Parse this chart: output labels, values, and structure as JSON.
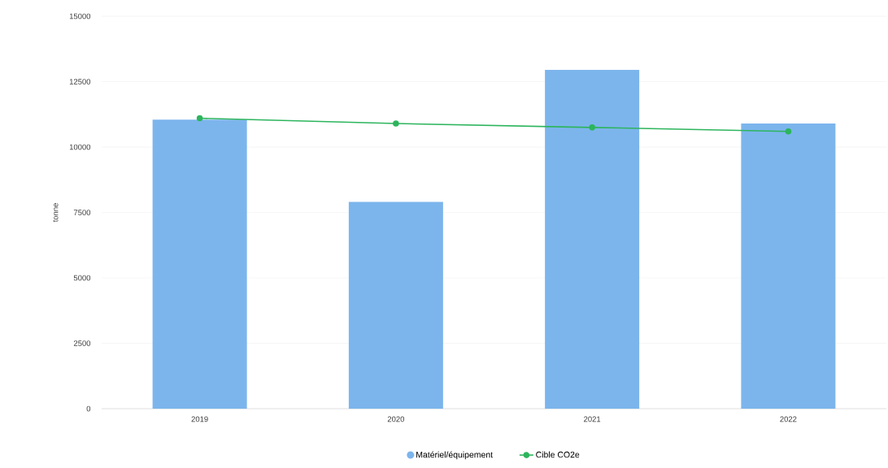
{
  "chart_data": {
    "type": "bar",
    "categories": [
      "2019",
      "2020",
      "2021",
      "2022"
    ],
    "ylabel": "tonne",
    "ylim": [
      0,
      15000
    ],
    "yticks": [
      0,
      2500,
      5000,
      7500,
      10000,
      12500,
      15000
    ],
    "grid": "y",
    "legend": "bottom",
    "series": [
      {
        "name": "Matériel/équipement",
        "color": "#7cb5ec",
        "values": [
          11050,
          7900,
          12950,
          10900
        ]
      },
      {
        "name": "Cible CO2e",
        "type": "line",
        "color": "#2db55d",
        "marker": "circle",
        "values": [
          11100,
          10900,
          10750,
          10600
        ]
      }
    ]
  }
}
